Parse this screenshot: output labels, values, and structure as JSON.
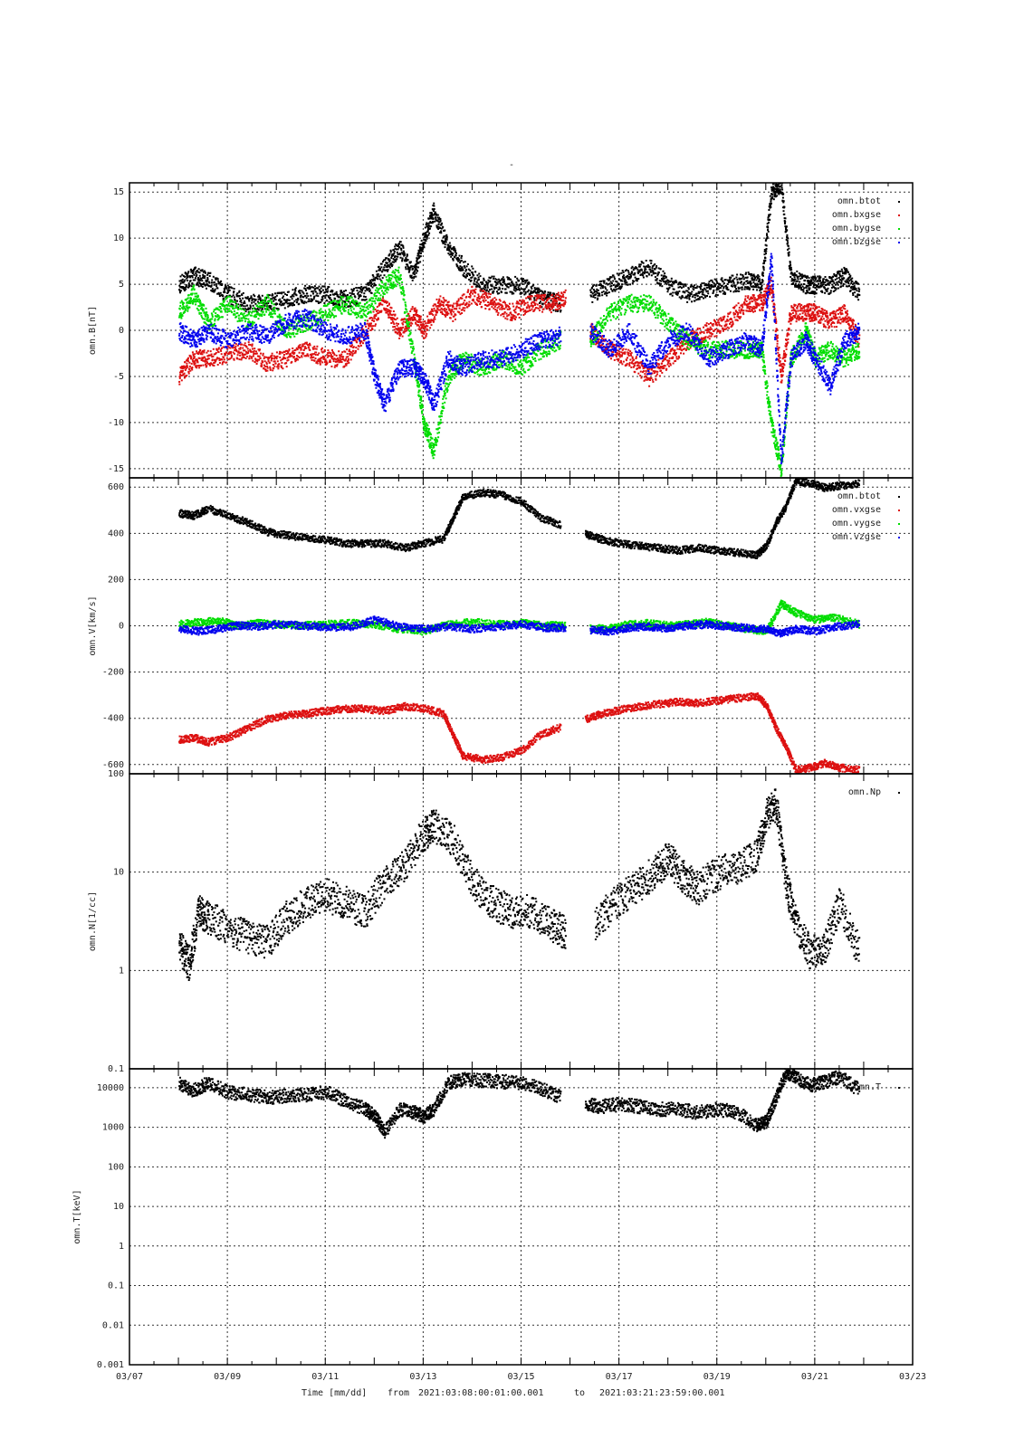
{
  "title": "-",
  "time_range": {
    "xlabel": "Time [mm/dd]",
    "from_label": "from",
    "from": "2021:03:08:00:01:00.001",
    "to_label": "to",
    "to": "2021:03:21:23:59:00.001"
  },
  "x_ticks": [
    "03/07",
    "03/09",
    "03/11",
    "03/13",
    "03/15",
    "03/17",
    "03/19",
    "03/21",
    "03/23"
  ],
  "chart_data": [
    {
      "type": "scatter",
      "ylabel": "omn.B[nT]",
      "ylim": [
        -16,
        16
      ],
      "yscale": "linear",
      "yticks": [
        15,
        10,
        5,
        0,
        -5,
        -10,
        -15
      ],
      "xlim_days": [
        7,
        23
      ],
      "grid": true,
      "legend_position": "top-right",
      "series": [
        {
          "name": "omn.btot",
          "color": "#000000",
          "x": [
            8.0,
            8.3,
            8.6,
            9.0,
            9.4,
            9.8,
            10.2,
            10.6,
            11.0,
            11.4,
            11.8,
            12.2,
            12.5,
            12.8,
            13.0,
            13.2,
            13.5,
            13.8,
            14.2,
            14.6,
            15.0,
            15.4,
            15.8,
            16.4,
            16.8,
            17.2,
            17.6,
            18.0,
            18.4,
            18.8,
            19.2,
            19.6,
            19.9,
            20.1,
            20.3,
            20.5,
            20.8,
            21.0,
            21.3,
            21.6,
            21.9
          ],
          "y": [
            5,
            6,
            5.5,
            4,
            3,
            3,
            3.5,
            4,
            4,
            3.5,
            4,
            7,
            9,
            6,
            10,
            13,
            9,
            7,
            5,
            5,
            5,
            3.5,
            3,
            4,
            5,
            6,
            7,
            5,
            4,
            4.5,
            5,
            5.5,
            5,
            15,
            16,
            6,
            5,
            5,
            5,
            6,
            4
          ]
        },
        {
          "name": "omn.bxgse",
          "color": "#dd1111",
          "x": [
            8.0,
            8.3,
            8.6,
            9.0,
            9.4,
            9.8,
            10.2,
            10.6,
            11.0,
            11.4,
            11.8,
            12.2,
            12.5,
            12.8,
            13.0,
            13.3,
            13.6,
            14.0,
            14.4,
            14.8,
            15.2,
            15.6,
            15.9,
            16.4,
            16.8,
            17.2,
            17.6,
            18.0,
            18.4,
            18.8,
            19.2,
            19.6,
            19.9,
            20.1,
            20.3,
            20.5,
            20.8,
            21.0,
            21.3,
            21.6,
            21.9
          ],
          "y": [
            -5,
            -3,
            -3,
            -2.5,
            -2,
            -3.5,
            -3,
            -2,
            -3,
            -3,
            0,
            3,
            0,
            2,
            0,
            3,
            2,
            4,
            3,
            2,
            3,
            3,
            3.5,
            0,
            -2,
            -3,
            -5,
            -3,
            -1,
            0,
            1,
            3,
            3,
            5,
            -5,
            2,
            2,
            2,
            1,
            2,
            -1
          ]
        },
        {
          "name": "omn.bygse",
          "color": "#00dd00",
          "x": [
            8.0,
            8.3,
            8.6,
            9.0,
            9.4,
            9.8,
            10.2,
            10.6,
            11.0,
            11.4,
            11.8,
            12.2,
            12.5,
            12.8,
            13.0,
            13.2,
            13.5,
            13.8,
            14.2,
            14.6,
            15.0,
            15.4,
            15.8,
            16.4,
            16.8,
            17.2,
            17.6,
            18.0,
            18.4,
            18.8,
            19.2,
            19.6,
            19.9,
            20.1,
            20.3,
            20.5,
            20.8,
            21.0,
            21.3,
            21.6,
            21.9
          ],
          "y": [
            2,
            4,
            1,
            3,
            1,
            3,
            0,
            1,
            2,
            3,
            2,
            5,
            6,
            -3,
            -10,
            -13,
            -5,
            -3,
            -4,
            -3,
            -4,
            -2,
            -1,
            -1,
            2,
            3,
            3,
            1,
            -1,
            -2,
            -2,
            -2,
            -2,
            -10,
            -15,
            -3,
            0,
            -3,
            -2,
            -3,
            -2
          ]
        },
        {
          "name": "omn.bzgse",
          "color": "#0000ee",
          "x": [
            8.0,
            8.3,
            8.6,
            9.0,
            9.4,
            9.8,
            10.2,
            10.6,
            11.0,
            11.4,
            11.8,
            12.0,
            12.2,
            12.5,
            12.8,
            13.0,
            13.2,
            13.5,
            13.8,
            14.2,
            14.6,
            15.0,
            15.4,
            15.8,
            16.4,
            16.8,
            17.2,
            17.6,
            18.0,
            18.4,
            18.8,
            19.2,
            19.6,
            19.9,
            20.1,
            20.3,
            20.5,
            20.8,
            21.0,
            21.3,
            21.6,
            21.9
          ],
          "y": [
            0,
            -1,
            0,
            -1,
            0,
            -0.5,
            1,
            1.5,
            0,
            -0.5,
            0,
            -5,
            -8,
            -4,
            -4,
            -5,
            -8,
            -3,
            -4,
            -3,
            -3,
            -2,
            -1,
            -0.5,
            0,
            -2,
            0,
            -4,
            -1,
            0,
            -3,
            -2,
            -1,
            -2,
            8,
            -14,
            -3,
            -1,
            -3,
            -6,
            -1,
            0
          ]
        }
      ]
    },
    {
      "type": "scatter",
      "ylabel": "omn.V[km/s]",
      "ylim": [
        -640,
        640
      ],
      "yscale": "linear",
      "yticks": [
        600,
        400,
        200,
        0,
        -200,
        -400,
        -600
      ],
      "xlim_days": [
        7,
        23
      ],
      "grid": true,
      "legend_position": "top-right",
      "series": [
        {
          "name": "omn.btot",
          "color": "#000000",
          "x": [
            8.0,
            8.3,
            8.6,
            9.0,
            9.4,
            9.8,
            10.2,
            10.6,
            11.0,
            11.4,
            11.8,
            12.2,
            12.6,
            13.0,
            13.4,
            13.6,
            13.8,
            14.2,
            14.6,
            15.0,
            15.4,
            15.8,
            16.3,
            16.6,
            17.0,
            17.4,
            17.8,
            18.2,
            18.6,
            19.0,
            19.4,
            19.8,
            20.0,
            20.2,
            20.4,
            20.6,
            20.9,
            21.2,
            21.5,
            21.9
          ],
          "y": [
            490,
            480,
            510,
            480,
            450,
            410,
            395,
            385,
            375,
            360,
            360,
            360,
            340,
            360,
            380,
            470,
            560,
            580,
            570,
            540,
            470,
            440,
            400,
            380,
            360,
            350,
            340,
            330,
            340,
            330,
            320,
            310,
            350,
            450,
            520,
            630,
            620,
            600,
            610,
            620
          ]
        },
        {
          "name": "omn.vxgse",
          "color": "#dd1111",
          "x": [
            8.0,
            8.3,
            8.6,
            9.0,
            9.4,
            9.8,
            10.2,
            10.6,
            11.0,
            11.4,
            11.8,
            12.2,
            12.6,
            13.0,
            13.4,
            13.6,
            13.8,
            14.2,
            14.6,
            15.0,
            15.4,
            15.8,
            16.3,
            16.6,
            17.0,
            17.4,
            17.8,
            18.2,
            18.6,
            19.0,
            19.4,
            19.8,
            20.0,
            20.2,
            20.4,
            20.6,
            20.9,
            21.2,
            21.5,
            21.9
          ],
          "y": [
            -490,
            -480,
            -500,
            -480,
            -440,
            -400,
            -385,
            -375,
            -365,
            -355,
            -355,
            -365,
            -345,
            -355,
            -375,
            -470,
            -560,
            -575,
            -565,
            -535,
            -465,
            -435,
            -400,
            -380,
            -360,
            -345,
            -335,
            -325,
            -330,
            -320,
            -310,
            -300,
            -340,
            -440,
            -520,
            -620,
            -610,
            -590,
            -610,
            -620
          ]
        },
        {
          "name": "omn.vygse",
          "color": "#00dd00",
          "x": [
            8.0,
            8.4,
            8.8,
            9.2,
            9.6,
            10.0,
            10.5,
            11.0,
            11.5,
            12.0,
            12.5,
            13.0,
            13.5,
            14.0,
            14.5,
            15.0,
            15.5,
            15.9,
            16.4,
            16.8,
            17.2,
            17.6,
            18.0,
            18.4,
            18.8,
            19.2,
            19.6,
            20.0,
            20.3,
            20.6,
            21.0,
            21.4,
            21.9
          ],
          "y": [
            10,
            20,
            25,
            5,
            15,
            10,
            5,
            10,
            15,
            10,
            -10,
            -20,
            10,
            20,
            10,
            15,
            5,
            5,
            -10,
            -5,
            10,
            15,
            5,
            10,
            20,
            5,
            -10,
            -20,
            100,
            60,
            30,
            40,
            10
          ]
        },
        {
          "name": "omn.vzgse",
          "color": "#0000ee",
          "x": [
            8.0,
            8.4,
            8.8,
            9.2,
            9.6,
            10.0,
            10.5,
            11.0,
            11.5,
            12.0,
            12.5,
            13.0,
            13.5,
            14.0,
            14.5,
            15.0,
            15.5,
            15.9,
            16.4,
            16.8,
            17.2,
            17.6,
            18.0,
            18.4,
            18.8,
            19.2,
            19.6,
            20.0,
            20.3,
            20.6,
            21.0,
            21.4,
            21.9
          ],
          "y": [
            -10,
            -20,
            -10,
            5,
            0,
            10,
            5,
            -5,
            0,
            30,
            0,
            -10,
            0,
            -10,
            0,
            10,
            -5,
            -5,
            -15,
            -20,
            -5,
            0,
            -10,
            5,
            10,
            0,
            -5,
            -10,
            -30,
            -10,
            -20,
            0,
            10
          ]
        }
      ]
    },
    {
      "type": "scatter",
      "ylabel": "omn.N[1/cc]",
      "ylim": [
        0.1,
        100
      ],
      "yscale": "log",
      "yticks": [
        100,
        10,
        1,
        0.1
      ],
      "ytick_labels": [
        "100",
        "10",
        "1",
        "0.1"
      ],
      "xlim_days": [
        7,
        23
      ],
      "grid": true,
      "legend_position": "top-right",
      "series": [
        {
          "name": "omn.Np",
          "color": "#000000",
          "x": [
            8.0,
            8.2,
            8.4,
            8.6,
            9.0,
            9.4,
            9.8,
            10.2,
            10.6,
            11.0,
            11.4,
            11.8,
            12.2,
            12.6,
            13.0,
            13.2,
            13.6,
            14.0,
            14.4,
            14.8,
            15.2,
            15.6,
            15.9,
            16.5,
            16.9,
            17.3,
            17.7,
            18.0,
            18.3,
            18.6,
            19.0,
            19.4,
            19.8,
            20.0,
            20.2,
            20.4,
            20.6,
            20.9,
            21.2,
            21.5,
            21.9
          ],
          "y": [
            1.8,
            1.2,
            4,
            3.5,
            2.8,
            2.2,
            2,
            3.5,
            5,
            6,
            5,
            4,
            8,
            12,
            25,
            30,
            22,
            8,
            5,
            4,
            4,
            3,
            2.5,
            3,
            5,
            7,
            10,
            14,
            9,
            7,
            10,
            11,
            15,
            40,
            50,
            8,
            3,
            1.5,
            1.8,
            5,
            1.5
          ]
        }
      ]
    },
    {
      "type": "scatter",
      "ylabel": "omn.T[keV]",
      "ylim": [
        0.001,
        30000
      ],
      "yscale": "log",
      "yticks": [
        10000,
        1000,
        100,
        10,
        1,
        0.1,
        0.01,
        0.001
      ],
      "ytick_labels": [
        "10000",
        "1000",
        "100",
        "10",
        "1",
        "0.1",
        "0.01",
        "0.001"
      ],
      "xlim_days": [
        7,
        23
      ],
      "grid": true,
      "legend_position": "top-right",
      "series": [
        {
          "name": "omn.T",
          "color": "#000000",
          "x": [
            8.0,
            8.3,
            8.6,
            9.0,
            9.4,
            9.8,
            10.2,
            10.6,
            11.0,
            11.4,
            11.8,
            12.0,
            12.2,
            12.5,
            12.8,
            13.0,
            13.2,
            13.5,
            13.8,
            14.2,
            14.6,
            15.0,
            15.4,
            15.8,
            16.3,
            16.6,
            17.0,
            17.4,
            17.8,
            18.2,
            18.6,
            19.0,
            19.4,
            19.8,
            20.0,
            20.2,
            20.4,
            20.6,
            20.9,
            21.2,
            21.5,
            21.9
          ],
          "y": [
            13000,
            9000,
            14000,
            8000,
            7000,
            6000,
            6500,
            7000,
            8000,
            5000,
            3000,
            2000,
            800,
            3000,
            2500,
            2000,
            3000,
            14000,
            17000,
            16000,
            15000,
            14000,
            10000,
            6000,
            4000,
            3500,
            4000,
            3500,
            3000,
            3000,
            2500,
            3000,
            2500,
            1200,
            1500,
            6000,
            25000,
            20000,
            12000,
            15000,
            20000,
            9000
          ]
        }
      ]
    }
  ]
}
